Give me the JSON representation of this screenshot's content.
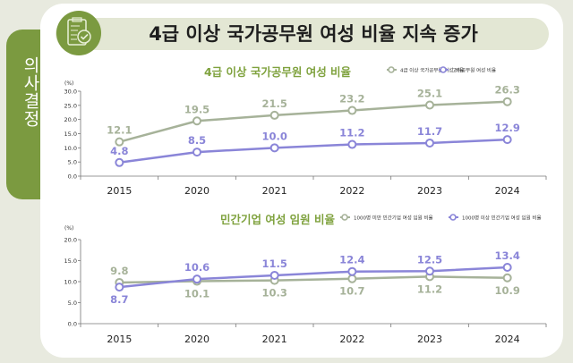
{
  "side_tab": "의사결정",
  "header": {
    "title": "4급 이상 국가공무원 여성 비율 지속 증가",
    "icon": "clipboard-check-icon"
  },
  "colors": {
    "green_series": "#a6b299",
    "purple_series": "#8a85d8",
    "subtitle": "#7fa23e",
    "accent": "#7b9a40"
  },
  "chart_data": [
    {
      "type": "line",
      "title": "4급 이상 국가공무원 여성 비율",
      "ylabel": "(%)",
      "categories": [
        "2015",
        "2020",
        "2021",
        "2022",
        "2023",
        "2024"
      ],
      "yticks": [
        "0.0",
        "5.0",
        "10.0",
        "15.0",
        "20.0",
        "25.0",
        "30.0"
      ],
      "ylim": [
        0,
        30
      ],
      "legend": "top-right",
      "series": [
        {
          "name": "4급 이상 국가공무원 여성 비율",
          "values": [
            12.1,
            19.5,
            21.5,
            23.2,
            25.1,
            26.3
          ],
          "labels": [
            "12.1",
            "19.5",
            "21.5",
            "23.2",
            "25.1",
            "26.3"
          ],
          "color": "#a6b299"
        },
        {
          "name": "고위공무원 여성 비율",
          "values": [
            4.8,
            8.5,
            10.0,
            11.2,
            11.7,
            12.9
          ],
          "labels": [
            "4.8",
            "8.5",
            "10.0",
            "11.2",
            "11.7",
            "12.9"
          ],
          "color": "#8a85d8"
        }
      ]
    },
    {
      "type": "line",
      "title": "민간기업 여성 임원 비율",
      "ylabel": "(%)",
      "categories": [
        "2015",
        "2020",
        "2021",
        "2022",
        "2023",
        "2024"
      ],
      "yticks": [
        "0.0",
        "5.0",
        "10.0",
        "15.0",
        "20.0"
      ],
      "ylim": [
        0,
        20
      ],
      "legend": "top-right",
      "series": [
        {
          "name": "1000명 미만 민간기업 여성 임원 비율",
          "values": [
            9.8,
            10.1,
            10.3,
            10.7,
            11.2,
            10.9
          ],
          "labels": [
            "9.8",
            "10.1",
            "10.3",
            "10.7",
            "11.2",
            "10.9"
          ],
          "color": "#a6b299"
        },
        {
          "name": "1000명 이상 민간기업 여성 임원 비율",
          "values": [
            8.7,
            10.6,
            11.5,
            12.4,
            12.5,
            13.4
          ],
          "labels": [
            "8.7",
            "10.6",
            "11.5",
            "12.4",
            "12.5",
            "13.4"
          ],
          "color": "#8a85d8"
        }
      ]
    }
  ]
}
